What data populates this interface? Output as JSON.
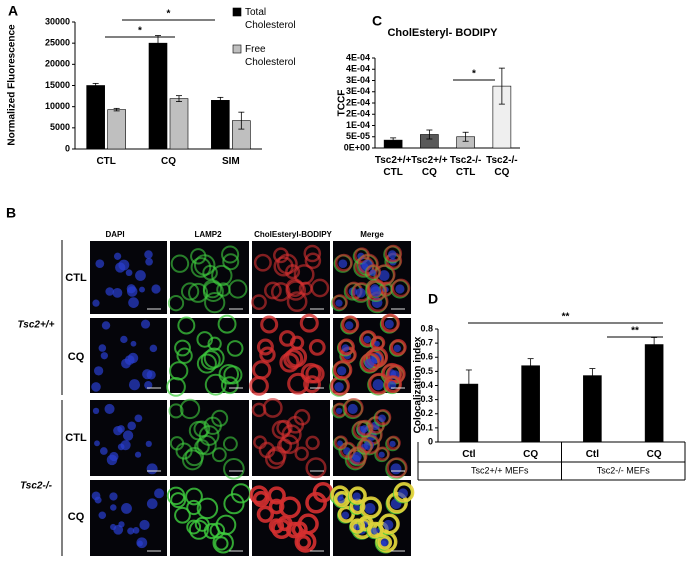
{
  "panels": [
    "A",
    "B",
    "C",
    "D"
  ],
  "chart_data": [
    {
      "type": "bar",
      "ylabel": "Normalized Fluorescence",
      "categories": [
        "CTL",
        "CQ",
        "SIM"
      ],
      "series": [
        {
          "name": "Total Cholesterol",
          "color": "#000000",
          "values": [
            15000,
            25000,
            11500
          ],
          "errors": [
            500,
            1800,
            700
          ]
        },
        {
          "name": "Free Cholesterol",
          "color": "#bfbfbf",
          "values": [
            9300,
            11900,
            6700
          ],
          "errors": [
            300,
            700,
            2000
          ]
        }
      ],
      "ylim": [
        0,
        30000
      ],
      "yticks": [
        0,
        5000,
        10000,
        15000,
        20000,
        25000,
        30000
      ],
      "annotations": [
        "*",
        "*"
      ]
    },
    {
      "type": "bar",
      "title": "CholEsteryl- BODIPY",
      "ylabel": "TCCF",
      "categories": [
        "Tsc2+/+\nCTL",
        "Tsc2+/+\nCQ",
        "Tsc2-/-\nCTL",
        "Tsc2-/-\nCQ"
      ],
      "values": [
        3.5e-05,
        6e-05,
        5e-05,
        0.000275
      ],
      "errors": [
        1e-05,
        2e-05,
        2e-05,
        8e-05
      ],
      "colors": [
        "#000000",
        "#595959",
        "#bfbfbf",
        "#efefef"
      ],
      "ylim": [
        0,
        0.0004
      ],
      "yticks": [
        {
          "value": 0,
          "label": "0E+00"
        },
        {
          "value": 5e-05,
          "label": "5E-05"
        },
        {
          "value": 0.0001,
          "label": "1E-04"
        },
        {
          "value": 0.00015,
          "label": "2E-04"
        },
        {
          "value": 0.0002,
          "label": "2E-04"
        },
        {
          "value": 0.00025,
          "label": "3E-04"
        },
        {
          "value": 0.0003,
          "label": "3E-04"
        },
        {
          "value": 0.00035,
          "label": "4E-04"
        },
        {
          "value": 0.0004,
          "label": "4E-04"
        }
      ],
      "annotations": [
        "*"
      ]
    },
    {
      "type": "bar",
      "ylabel": "Colocalization index",
      "categories": [
        "Ctl",
        "CQ",
        "Ctl",
        "CQ"
      ],
      "groups": [
        "Tsc2+/+ MEFs",
        "Tsc2-/- MEFs"
      ],
      "values": [
        0.41,
        0.54,
        0.47,
        0.69
      ],
      "errors": [
        0.1,
        0.05,
        0.05,
        0.05
      ],
      "color": "#000000",
      "ylim": [
        0,
        0.8
      ],
      "yticks": [
        0,
        0.1,
        0.2,
        0.3,
        0.4,
        0.5,
        0.6,
        0.7,
        0.8
      ],
      "annotations": [
        "**",
        "**"
      ]
    }
  ],
  "image_grid": {
    "columns": [
      "DAPI",
      "LAMP2",
      "CholEsteryl-BODIPY",
      "Merge"
    ],
    "genotypes": [
      "Tsc2+/+",
      "Tsc2-/-"
    ],
    "rows": [
      "CTL",
      "CQ",
      "CTL",
      "CQ"
    ]
  }
}
